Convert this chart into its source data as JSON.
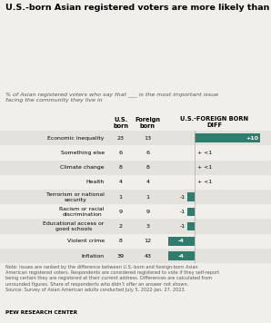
{
  "title": "U.S.-born Asian registered voters are more likely than immigrants to say economic inequality is the most important issue facing their community",
  "subtitle": "% of Asian registered voters who say that ___ is the most important issue\nfacing the community they live in",
  "categories": [
    "Economic inequality",
    "Something else",
    "Climate change",
    "Health",
    "Terrorism or national\nsecurity",
    "Racism or racial\ndiscrimination",
    "Educational access or\ngood schools",
    "Violent crime",
    "Inflation"
  ],
  "us_born": [
    23,
    6,
    8,
    4,
    1,
    9,
    2,
    8,
    39
  ],
  "foreign_born": [
    13,
    6,
    8,
    4,
    1,
    9,
    3,
    12,
    43
  ],
  "diff": [
    10,
    0,
    0,
    0,
    -1,
    -1,
    -1,
    -4,
    -4
  ],
  "diff_labels": [
    "+10",
    "+ <1",
    "+ <1",
    "+ <1",
    "-1",
    "-1",
    "-1",
    "-4",
    "-4"
  ],
  "bar_color": "#2e7d6e",
  "bg_color": "#f0efea",
  "row_alt_color": "#e3e2dc",
  "header_col1": "U.S.\nborn",
  "header_col2": "Foreign\nborn",
  "header_col3": "U.S.-FOREIGN BORN\nDIFF",
  "note": "Note: Issues are ranked by the difference between U.S.-born and foreign-born Asian\nAmerican registered voters. Respondents are considered registered to vote if they self-report\nbeing certain they are registered at their current address. Differences are calculated from\nunrounded figures. Share of respondents who didn’t offer an answer not shown.\nSource: Survey of Asian American adults conducted July 5, 2022-Jan. 27, 2023.",
  "source_label": "PEW RESEARCH CENTER",
  "diff_min": -5,
  "diff_max": 11
}
